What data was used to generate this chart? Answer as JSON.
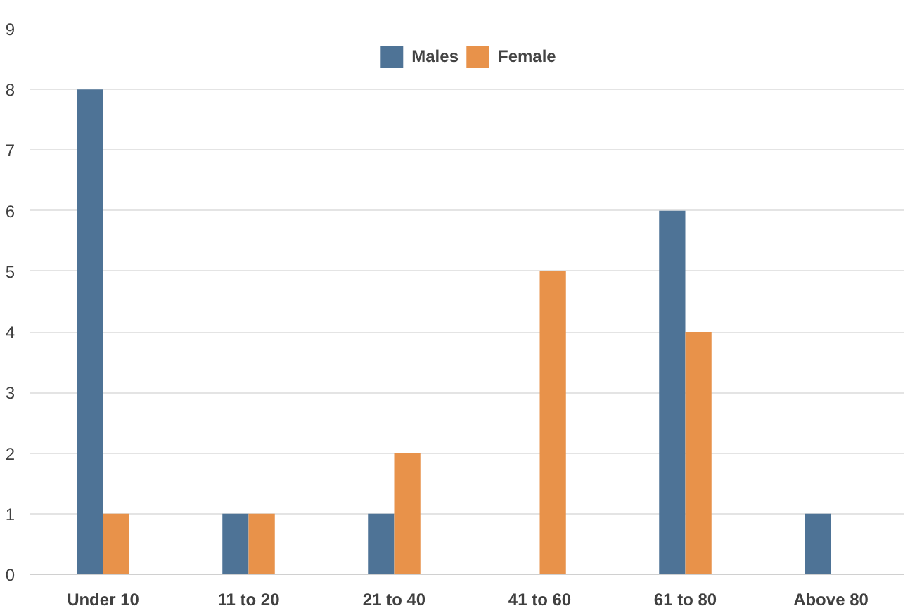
{
  "chart_data": {
    "type": "bar",
    "categories": [
      "Under 10",
      "11 to 20",
      "21 to 40",
      "41 to 60",
      "61 to 80",
      "Above 80"
    ],
    "series": [
      {
        "name": "Males",
        "color": "#4e7396",
        "values": [
          8,
          1,
          1,
          0,
          6,
          1
        ]
      },
      {
        "name": "Female",
        "color": "#e8924a",
        "values": [
          1,
          1,
          2,
          5,
          4,
          0
        ]
      }
    ],
    "ylim": [
      0,
      9
    ],
    "yticks": [
      0,
      1,
      2,
      3,
      4,
      5,
      6,
      7,
      8,
      9
    ],
    "grid": "y",
    "legend": "top"
  }
}
